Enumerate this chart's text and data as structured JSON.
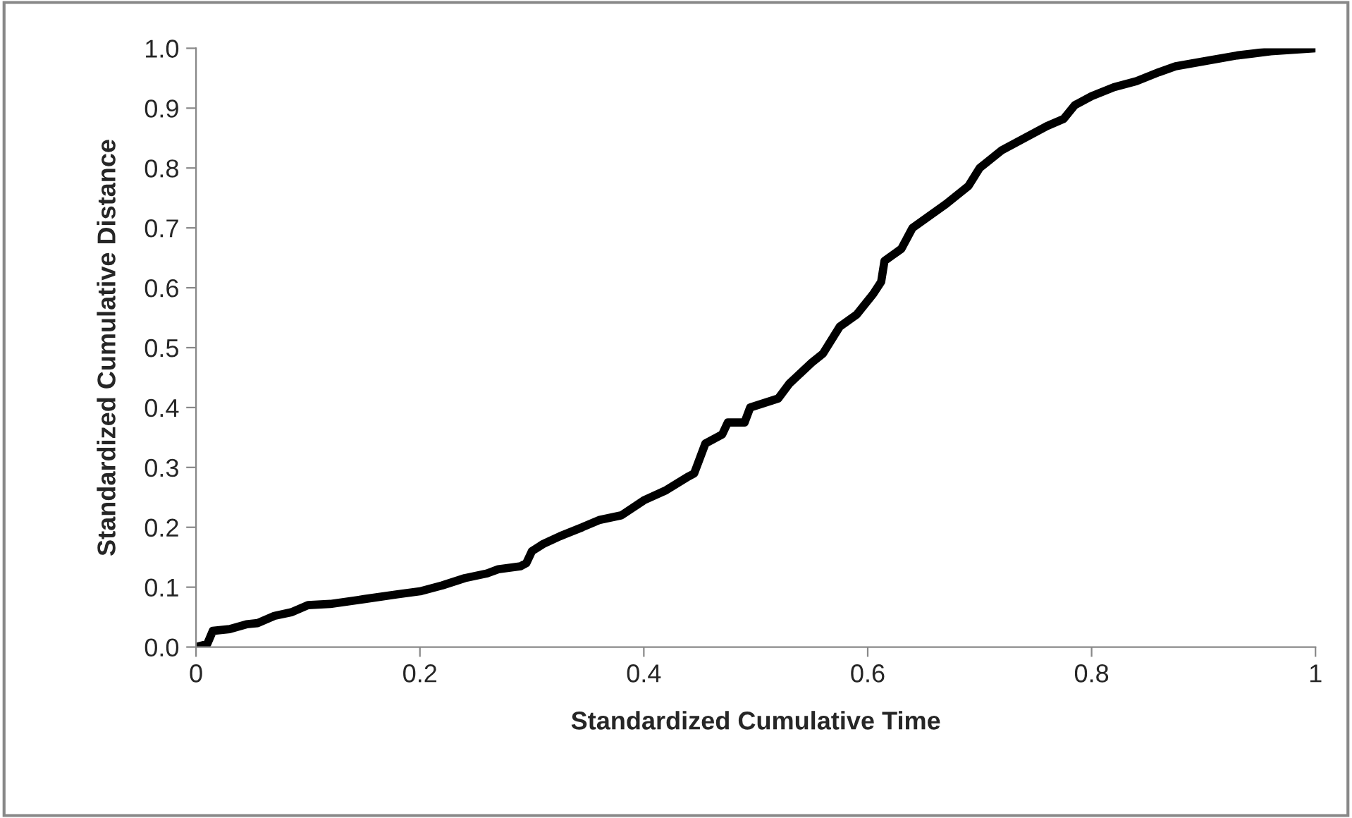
{
  "chart_data": {
    "type": "line",
    "xlabel": "Standardized Cumulative Time",
    "ylabel": "Standardized Cumulative Distance",
    "x": [
      0,
      0.01,
      0.015,
      0.03,
      0.045,
      0.055,
      0.07,
      0.085,
      0.1,
      0.12,
      0.15,
      0.18,
      0.2,
      0.22,
      0.24,
      0.26,
      0.27,
      0.29,
      0.295,
      0.3,
      0.31,
      0.325,
      0.345,
      0.36,
      0.38,
      0.4,
      0.42,
      0.44,
      0.445,
      0.455,
      0.47,
      0.475,
      0.49,
      0.495,
      0.52,
      0.53,
      0.55,
      0.56,
      0.575,
      0.59,
      0.605,
      0.612,
      0.615,
      0.63,
      0.64,
      0.655,
      0.67,
      0.69,
      0.7,
      0.72,
      0.74,
      0.76,
      0.775,
      0.785,
      0.8,
      0.82,
      0.84,
      0.86,
      0.875,
      0.9,
      0.93,
      0.96,
      1
    ],
    "series": [
      {
        "color": "#000000",
        "values": [
          0,
          0.005,
          0.027,
          0.03,
          0.038,
          0.04,
          0.052,
          0.058,
          0.07,
          0.072,
          0.08,
          0.088,
          0.093,
          0.103,
          0.115,
          0.123,
          0.13,
          0.135,
          0.14,
          0.16,
          0.172,
          0.185,
          0.2,
          0.212,
          0.22,
          0.245,
          0.262,
          0.285,
          0.29,
          0.34,
          0.355,
          0.375,
          0.375,
          0.4,
          0.415,
          0.44,
          0.475,
          0.49,
          0.535,
          0.555,
          0.59,
          0.61,
          0.645,
          0.665,
          0.7,
          0.72,
          0.74,
          0.77,
          0.8,
          0.83,
          0.85,
          0.87,
          0.882,
          0.905,
          0.92,
          0.935,
          0.945,
          0.96,
          0.97,
          0.978,
          0.988,
          0.995,
          1
        ]
      }
    ],
    "xlim": [
      0,
      1
    ],
    "xticks": [
      0,
      {
        "value": 0.2,
        "label": "0.2"
      },
      {
        "value": 0.4,
        "label": "0.4"
      },
      {
        "value": 0.6,
        "label": "0.6"
      },
      {
        "value": 0.8,
        "label": "0.8"
      },
      1
    ],
    "ylim": [
      0,
      1
    ],
    "yticks": [
      {
        "value": 0,
        "label": "0.0"
      },
      {
        "value": 0.1,
        "label": "0.1"
      },
      {
        "value": 0.2,
        "label": "0.2"
      },
      {
        "value": 0.3,
        "label": "0.3"
      },
      {
        "value": 0.4,
        "label": "0.4"
      },
      {
        "value": 0.5,
        "label": "0.5"
      },
      {
        "value": 0.6,
        "label": "0.6"
      },
      {
        "value": 0.7,
        "label": "0.7"
      },
      {
        "value": 0.8,
        "label": "0.8"
      },
      {
        "value": 0.9,
        "label": "0.9"
      },
      {
        "value": 1,
        "label": "1.0"
      }
    ],
    "grid": false
  }
}
